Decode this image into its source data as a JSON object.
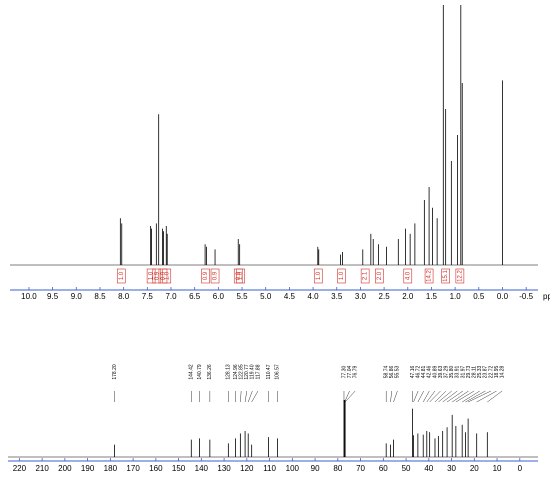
{
  "chart_data": [
    {
      "type": "stick-spectrum",
      "x_label": "ppm",
      "color": "#000000",
      "integral_color": "#d0302a",
      "axis_color": "#3a5fcd",
      "x": [
        8.07,
        8.04,
        7.43,
        7.41,
        7.31,
        7.26,
        7.18,
        7.16,
        7.1,
        7.08,
        6.28,
        6.25,
        6.07,
        5.58,
        5.55,
        3.9,
        3.88,
        3.42,
        3.38,
        2.95,
        2.78,
        2.73,
        2.62,
        2.45,
        2.2,
        2.05,
        1.95,
        1.85,
        1.65,
        1.55,
        1.48,
        1.38,
        1.25,
        1.2,
        1.08,
        0.95,
        0.88,
        0.85,
        0.0
      ],
      "values": [
        18,
        16,
        15,
        14,
        16,
        58,
        14,
        13,
        15,
        12,
        8,
        7,
        6,
        10,
        8,
        7,
        6,
        4,
        5,
        6,
        12,
        10,
        8,
        7,
        10,
        14,
        12,
        16,
        25,
        30,
        22,
        18,
        100,
        60,
        40,
        50,
        100,
        70,
        71
      ],
      "ylim": [
        0,
        100
      ],
      "xlim": [
        10.4,
        -0.75
      ],
      "xticks": [
        {
          "value": 10,
          "label": "10.0"
        },
        {
          "value": 9.5,
          "label": "9.5"
        },
        {
          "value": 9,
          "label": "9.0"
        },
        {
          "value": 8.5,
          "label": "8.5"
        },
        {
          "value": 8,
          "label": "8.0"
        },
        {
          "value": 7.5,
          "label": "7.5"
        },
        {
          "value": 7,
          "label": "7.0"
        },
        {
          "value": 6.5,
          "label": "6.5"
        },
        {
          "value": 6,
          "label": "6.0"
        },
        {
          "value": 5.5,
          "label": "5.5"
        },
        {
          "value": 5,
          "label": "5.0"
        },
        {
          "value": 4.5,
          "label": "4.5"
        },
        {
          "value": 4,
          "label": "4.0"
        },
        {
          "value": 3.5,
          "label": "3.5"
        },
        {
          "value": 3,
          "label": "3.0"
        },
        {
          "value": 2.5,
          "label": "2.5"
        },
        {
          "value": 2,
          "label": "2.0"
        },
        {
          "value": 1.5,
          "label": "1.5"
        },
        {
          "value": 1,
          "label": "1.0"
        },
        {
          "value": 0.5,
          "label": "0.5"
        },
        {
          "value": 0,
          "label": "0.0"
        },
        {
          "value": -0.5,
          "label": "-0.5"
        }
      ],
      "integrals": {
        "x": [
          8.05,
          7.42,
          7.3,
          7.17,
          7.09,
          6.27,
          6.07,
          5.58,
          5.53,
          3.89,
          3.4,
          2.9,
          2.6,
          2.0,
          1.55,
          1.2,
          0.9
        ],
        "values": [
          1.0,
          1.0,
          0.9,
          0.9,
          1.0,
          0.9,
          0.9,
          0.9,
          1.0,
          1.0,
          1.0,
          2.1,
          2.0,
          4.0,
          14.2,
          15.1,
          12.2
        ],
        "value_labels": [
          "1.0",
          "1.0",
          "0.9",
          "0.9",
          "1.0",
          "0.9",
          "0.9",
          "0.9",
          "1.0",
          "1.0",
          "1.0",
          "2.1",
          "2.0",
          "4.0",
          "14.2",
          "15.1",
          "12.2"
        ]
      }
    },
    {
      "type": "stick-spectrum",
      "color": "#000000",
      "axis_color": "#3a5fcd",
      "x": [
        178.2,
        144.42,
        140.79,
        136.26,
        128.13,
        124.96,
        122.85,
        120.77,
        119.4,
        117.88,
        110.47,
        106.57,
        77.3,
        77.04,
        76.79,
        58.74,
        56.86,
        55.53,
        47.16,
        46.72,
        44.81,
        42.46,
        40.89,
        39.63,
        37.29,
        35.8,
        33.91,
        31.97,
        29.73,
        28.11,
        25.33,
        23.87,
        22.72,
        18.95,
        14.28
      ],
      "x_labels": [
        "178.20",
        "144.42",
        "140.79",
        "136.26",
        "128.13",
        "124.96",
        "122.85",
        "120.77",
        "119.40",
        "117.88",
        "110.47",
        "106.57",
        "77.30",
        "77.04",
        "76.79",
        "58.74",
        "56.86",
        "55.53",
        "47.16",
        "46.72",
        "44.81",
        "42.46",
        "40.89",
        "39.63",
        "37.29",
        "35.80",
        "33.91",
        "31.97",
        "29.73",
        "28.11",
        "25.33",
        "23.87",
        "22.72",
        "18.95",
        "14.28"
      ],
      "values": [
        20,
        28,
        30,
        28,
        22,
        30,
        38,
        42,
        38,
        20,
        32,
        30,
        92,
        92,
        92,
        22,
        20,
        28,
        78,
        35,
        38,
        36,
        42,
        40,
        30,
        34,
        42,
        48,
        68,
        50,
        52,
        40,
        62,
        38,
        40
      ],
      "ylim": [
        0,
        100
      ],
      "xlim": [
        225,
        -8
      ],
      "xticks": [
        220,
        210,
        200,
        190,
        180,
        170,
        160,
        150,
        140,
        130,
        120,
        110,
        100,
        90,
        80,
        70,
        60,
        50,
        40,
        30,
        20,
        10,
        0
      ]
    }
  ]
}
